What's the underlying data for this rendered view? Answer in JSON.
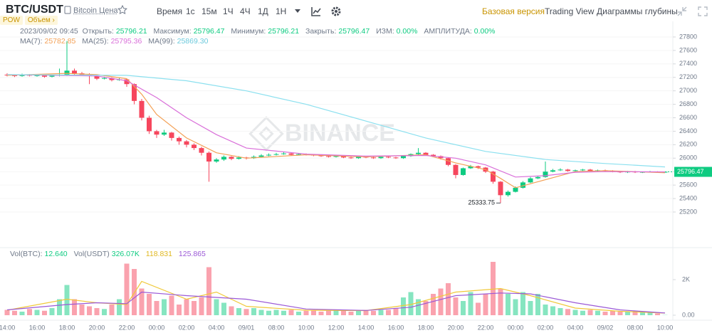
{
  "header": {
    "symbol": "BTC/USDT",
    "subtitle": "Bitcoin Цена",
    "badges": [
      "POW",
      "Объем ›"
    ]
  },
  "toolbar": {
    "intervals": [
      "Время",
      "1с",
      "15м",
      "1Ч",
      "4Ч",
      "1Д",
      "1Н"
    ],
    "active": "15м",
    "views": [
      "Базовая версия",
      "Trading View",
      "Диаграммы глубины"
    ]
  },
  "info": {
    "datetime": "2023/09/02 09:45",
    "open_label": "Открыть:",
    "high_label": "Максимум:",
    "low_label": "Минимум:",
    "close_label": "Закрыть:",
    "change_label": "ИЗМ:",
    "change": "0.00%",
    "amplitude_label": "АМПЛИТУДА:",
    "amplitude": "0.00%"
  },
  "vol_legend": {
    "btc_label": "Vol(BTC):",
    "btc_value": "12.640",
    "usdt_label": "Vol(USDT)",
    "usdt_value": "326.07K"
  },
  "watermark": "BINANCE",
  "chart_data": {
    "type": "candlestick",
    "up_color": "#0ecb81",
    "down_color": "#f6465d",
    "categories": [
      "14:00",
      null,
      null,
      null,
      "16:00",
      null,
      null,
      null,
      "18:00",
      null,
      null,
      null,
      "20:00",
      null,
      null,
      null,
      "22:00",
      null,
      null,
      null,
      "00:00",
      null,
      null,
      null,
      "02:00",
      null,
      null,
      null,
      "04:00",
      null,
      null,
      null,
      "09/01",
      null,
      null,
      null,
      "08:00",
      null,
      null,
      null,
      "10:00",
      null,
      null,
      null,
      "12:00",
      null,
      null,
      null,
      "14:00",
      null,
      null,
      null,
      "16:00",
      null,
      null,
      null,
      "18:00",
      null,
      null,
      null,
      "20:00",
      null,
      null,
      null,
      "22:00",
      null,
      null,
      null,
      "00:00",
      null,
      null,
      null,
      "02:00",
      null,
      null,
      null,
      "04:00",
      null,
      null,
      null,
      "09/02",
      null,
      null,
      null,
      "08:00",
      null,
      null,
      null,
      "10:00"
    ],
    "ohlc": [
      [
        27240,
        27260,
        27215,
        27230
      ],
      [
        27230,
        27245,
        27205,
        27220
      ],
      [
        27220,
        27255,
        27210,
        27240
      ],
      [
        27240,
        27250,
        27215,
        27225
      ],
      [
        27225,
        27245,
        27210,
        27230
      ],
      [
        27230,
        27240,
        27195,
        27210
      ],
      [
        27210,
        27240,
        27200,
        27225
      ],
      [
        27225,
        27330,
        27215,
        27235
      ],
      [
        27235,
        27740,
        27220,
        27300
      ],
      [
        27300,
        27330,
        27240,
        27260
      ],
      [
        27260,
        27280,
        27220,
        27240
      ],
      [
        27240,
        27260,
        27100,
        27220
      ],
      [
        27220,
        27230,
        27160,
        27180
      ],
      [
        27180,
        27210,
        27170,
        27190
      ],
      [
        27190,
        27200,
        27140,
        27160
      ],
      [
        27160,
        27190,
        27150,
        27170
      ],
      [
        27170,
        27180,
        27060,
        27100
      ],
      [
        27100,
        27110,
        26800,
        26850
      ],
      [
        26850,
        26880,
        26560,
        26600
      ],
      [
        26600,
        26630,
        26360,
        26400
      ],
      [
        26400,
        26420,
        26300,
        26350
      ],
      [
        26350,
        26420,
        26330,
        26380
      ],
      [
        26380,
        26390,
        26260,
        26300
      ],
      [
        26300,
        26320,
        26200,
        26250
      ],
      [
        26250,
        26270,
        26160,
        26200
      ],
      [
        26200,
        26220,
        26120,
        26150
      ],
      [
        26150,
        26170,
        26040,
        26080
      ],
      [
        26080,
        26100,
        25650,
        25950
      ],
      [
        25950,
        26000,
        25930,
        25980
      ],
      [
        25980,
        26040,
        25960,
        26020
      ],
      [
        26020,
        26030,
        25970,
        25990
      ],
      [
        25990,
        26030,
        25980,
        26010
      ],
      [
        26010,
        26020,
        25980,
        26000
      ],
      [
        26000,
        26040,
        25990,
        26020
      ],
      [
        26020,
        26060,
        26010,
        26040
      ],
      [
        26040,
        26070,
        26030,
        26050
      ],
      [
        26050,
        26080,
        26040,
        26060
      ],
      [
        26060,
        26090,
        26050,
        26070
      ],
      [
        26070,
        26080,
        26040,
        26050
      ],
      [
        26050,
        26070,
        26040,
        26060
      ],
      [
        26060,
        26070,
        26040,
        26050
      ],
      [
        26050,
        26060,
        26030,
        26040
      ],
      [
        26040,
        26050,
        26020,
        26030
      ],
      [
        26030,
        26040,
        26010,
        26020
      ],
      [
        26020,
        26040,
        26010,
        26030
      ],
      [
        26030,
        26040,
        26000,
        26010
      ],
      [
        26010,
        26020,
        25990,
        26000
      ],
      [
        26000,
        26030,
        25990,
        26020
      ],
      [
        26020,
        26030,
        26000,
        26010
      ],
      [
        26010,
        26020,
        25990,
        26000
      ],
      [
        26000,
        26030,
        25990,
        26020
      ],
      [
        26020,
        26030,
        26000,
        26010
      ],
      [
        26010,
        26020,
        25990,
        26000
      ],
      [
        26000,
        26040,
        25990,
        26030
      ],
      [
        26030,
        26070,
        26020,
        26060
      ],
      [
        26060,
        26150,
        26050,
        26080
      ],
      [
        26080,
        26090,
        26040,
        26050
      ],
      [
        26050,
        26060,
        26020,
        26030
      ],
      [
        26030,
        26040,
        25980,
        26000
      ],
      [
        26000,
        26010,
        25880,
        25900
      ],
      [
        25900,
        25910,
        25700,
        25750
      ],
      [
        25750,
        25860,
        25740,
        25850
      ],
      [
        25850,
        25900,
        25840,
        25880
      ],
      [
        25880,
        25890,
        25840,
        25860
      ],
      [
        25860,
        25870,
        25780,
        25800
      ],
      [
        25800,
        25810,
        25620,
        25650
      ],
      [
        25650,
        25660,
        25333.75,
        25450
      ],
      [
        25450,
        25520,
        25430,
        25500
      ],
      [
        25500,
        25580,
        25490,
        25560
      ],
      [
        25560,
        25660,
        25550,
        25640
      ],
      [
        25640,
        25720,
        25630,
        25700
      ],
      [
        25700,
        25740,
        25690,
        25720
      ],
      [
        25720,
        25950,
        25710,
        25800
      ],
      [
        25800,
        25840,
        25790,
        25820
      ],
      [
        25820,
        25850,
        25810,
        25830
      ],
      [
        25830,
        25840,
        25800,
        25810
      ],
      [
        25810,
        25830,
        25800,
        25820
      ],
      [
        25820,
        25840,
        25810,
        25830
      ],
      [
        25830,
        25840,
        25800,
        25810
      ],
      [
        25810,
        25830,
        25800,
        25820
      ],
      [
        25820,
        25830,
        25800,
        25810
      ],
      [
        25810,
        25820,
        25790,
        25800
      ],
      [
        25800,
        25810,
        25780,
        25790
      ],
      [
        25790,
        25810,
        25780,
        25800
      ],
      [
        25800,
        25810,
        25780,
        25790
      ],
      [
        25790,
        25800,
        25780,
        25795
      ],
      [
        25795,
        25810,
        25790,
        25800
      ],
      [
        25800,
        25805,
        25785,
        25790
      ],
      [
        25796.21,
        25796.47,
        25796.21,
        25796.47
      ]
    ],
    "ylim": [
      25000,
      27900
    ],
    "yticks": [
      25200,
      25400,
      25600,
      25800,
      26000,
      26200,
      26400,
      26600,
      26800,
      27000,
      27200,
      27400,
      27600,
      27800
    ],
    "grid": true,
    "ma": [
      {
        "name": "MA(7):",
        "color": "#f3a055",
        "x": [
          0,
          8,
          12,
          16,
          18,
          20,
          24,
          28,
          32,
          40,
          48,
          56,
          60,
          64,
          66,
          68,
          72,
          76,
          80,
          88
        ],
        "values": [
          27230,
          27260,
          27240,
          27180,
          26950,
          26650,
          26300,
          26080,
          26000,
          26050,
          26020,
          26050,
          25930,
          25830,
          25700,
          25560,
          25680,
          25800,
          25815,
          25782.85
        ]
      },
      {
        "name": "MA(25):",
        "color": "#d96fd9",
        "x": [
          0,
          12,
          16,
          20,
          24,
          28,
          32,
          40,
          48,
          56,
          60,
          64,
          68,
          72,
          76,
          80,
          88
        ],
        "values": [
          27240,
          27220,
          27150,
          26900,
          26600,
          26350,
          26150,
          26060,
          26030,
          26040,
          26000,
          25900,
          25720,
          25740,
          25790,
          25800,
          25795.36
        ]
      },
      {
        "name": "MA(99):",
        "color": "#8be0ef",
        "x": [
          0,
          16,
          24,
          32,
          40,
          48,
          56,
          64,
          72,
          80,
          88
        ],
        "values": [
          27240,
          27230,
          27150,
          27000,
          26800,
          26550,
          26300,
          26100,
          25980,
          25920,
          25869.3
        ],
        "value_labels": [
          null,
          null,
          null,
          null,
          null,
          null,
          null,
          null,
          null,
          null,
          "25869.30"
        ]
      }
    ],
    "volume": {
      "values": [
        300,
        250,
        200,
        350,
        300,
        250,
        400,
        900,
        1700,
        900,
        600,
        500,
        400,
        350,
        600,
        900,
        2900,
        2600,
        1500,
        1200,
        800,
        900,
        1100,
        600,
        900,
        800,
        1000,
        2700,
        900,
        700,
        500,
        400,
        350,
        400,
        300,
        250,
        300,
        250,
        300,
        200,
        250,
        300,
        200,
        250,
        300,
        250,
        200,
        250,
        300,
        250,
        300,
        300,
        400,
        1000,
        1300,
        900,
        800,
        1200,
        1500,
        1800,
        1000,
        800,
        1300,
        700,
        1200,
        3000,
        1500,
        1200,
        900,
        1300,
        800,
        1200,
        600,
        500,
        400,
        350,
        300,
        250,
        300,
        250,
        200,
        250,
        200,
        200,
        250,
        200,
        150,
        100,
        12.64
      ],
      "ylim": [
        0,
        3400
      ],
      "yticks": [
        {
          "value": 0,
          "label": "0.00"
        },
        {
          "value": 2000,
          "label": "2K"
        }
      ],
      "ma": [
        {
          "color": "#f0c93a",
          "x": [
            0,
            8,
            12,
            16,
            18,
            24,
            28,
            32,
            40,
            48,
            54,
            60,
            66,
            70,
            76,
            82,
            88
          ],
          "values": [
            280,
            900,
            700,
            600,
            1900,
            900,
            1300,
            500,
            280,
            260,
            600,
            1300,
            1500,
            1100,
            400,
            220,
            118.831
          ]
        },
        {
          "color": "#9b59d6",
          "x": [
            0,
            8,
            12,
            16,
            18,
            24,
            28,
            32,
            40,
            48,
            54,
            60,
            66,
            70,
            76,
            82,
            88
          ],
          "values": [
            300,
            600,
            700,
            650,
            1300,
            1100,
            1000,
            900,
            350,
            270,
            450,
            1100,
            1250,
            1200,
            700,
            300,
            125.865
          ]
        }
      ]
    }
  }
}
